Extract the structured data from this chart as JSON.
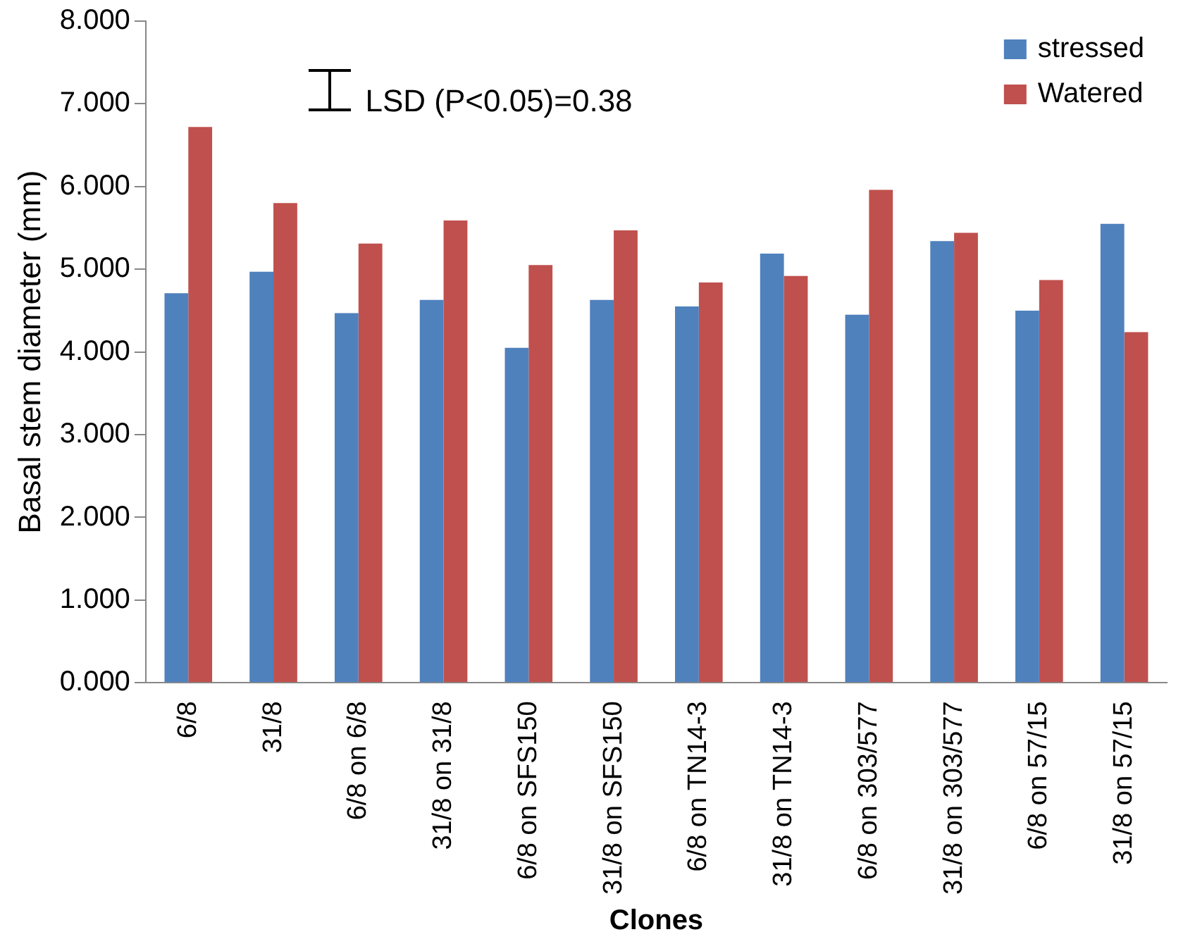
{
  "chart_data": {
    "type": "bar",
    "xlabel": "Clones",
    "ylabel": "Basal stem diameter (mm)",
    "categories": [
      "6/8",
      "31/8",
      "6/8 on 6/8",
      "31/8 on 31/8",
      "6/8 on SFS150",
      "31/8 on SFS150",
      "6/8 on TN14-3",
      "31/8 on TN14-3",
      "6/8 on 303/577",
      "31/8 on 303/577",
      "6/8 on 57/15",
      "31/8 on 57/15"
    ],
    "series": [
      {
        "name": "stressed",
        "color": "#4f81bd",
        "values": [
          4.71,
          4.97,
          4.47,
          4.63,
          4.05,
          4.63,
          4.55,
          5.19,
          4.45,
          5.34,
          4.5,
          5.55
        ]
      },
      {
        "name": "Watered",
        "color": "#c0504d",
        "values": [
          6.72,
          5.8,
          5.31,
          5.59,
          5.05,
          5.47,
          4.84,
          4.92,
          5.96,
          5.44,
          4.87,
          4.24
        ]
      }
    ],
    "ylim": [
      0,
      8
    ],
    "yticks": [
      {
        "value": 0,
        "label": "0.000"
      },
      {
        "value": 1,
        "label": "1.000"
      },
      {
        "value": 2,
        "label": "2.000"
      },
      {
        "value": 3,
        "label": "3.000"
      },
      {
        "value": 4,
        "label": "4.000"
      },
      {
        "value": 5,
        "label": "5.000"
      },
      {
        "value": 6,
        "label": "6.000"
      },
      {
        "value": 7,
        "label": "7.000"
      },
      {
        "value": 8,
        "label": "8.000"
      }
    ],
    "annotations": [
      "LSD (P<0.05)=0.38"
    ],
    "grid": false,
    "legend": "top right"
  }
}
